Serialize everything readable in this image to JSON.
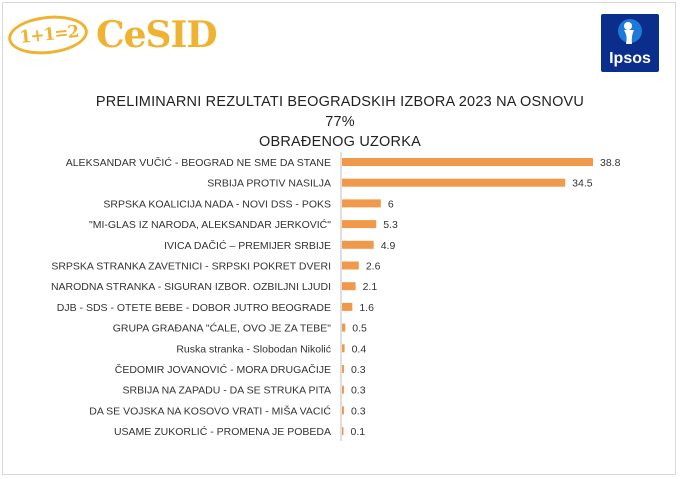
{
  "logos": {
    "left_badge": "1+1=2",
    "left_brand": "CeSID",
    "right_brand": "Ipsos"
  },
  "colors": {
    "bar": "#f0994a",
    "brand_orange": "#f0b331",
    "ipsos_blue": "#0b2d8c"
  },
  "chart_data": {
    "type": "bar",
    "orientation": "horizontal",
    "title_line1": "PRELIMINARNI REZULTATI BEOGRADSKIH IZBORA 2023 NA OSNOVU 77%",
    "title_line2": "OBRAĐENOG UZORKA",
    "categories": [
      "ALEKSANDAR VUČIĆ - BEOGRAD NE SME DA STANE",
      "SRBIJA PROTIV NASILJA",
      "SRPSKA KOALICIJA NADA - NOVI DSS - POKS",
      "\"MI-GLAS IZ NARODA, ALEKSANDAR JERKOVIĆ\"",
      "IVICA DAČIĆ – PREMIJER SRBIJE",
      "SRPSKA STRANKA ZAVETNICI - SRPSKI POKRET DVERI",
      "NARODNA STRANKA - SIGURAN IZBOR. OZBILJNI LJUDI",
      "DJB - SDS - OTETE BEBE - DOBOR JUTRO BEOGRADE",
      "GRUPA GRAĐANA \"ĆALE, OVO JE ZA TEBE\"",
      "Ruska stranka - Slobodan Nikolić",
      "ČEDOMIR JOVANOVIĆ - MORA DRUGAČIJE",
      "SRBIJA NA ZAPADU - DA SE STRUKA PITA",
      "DA SE VOJSKA NA KOSOVO VRATI - MIŠA VACIĆ",
      "USAME ZUKORLIĆ - PROMENA JE POBEDA"
    ],
    "values": [
      38.8,
      34.5,
      6,
      5.3,
      4.9,
      2.6,
      2.1,
      1.6,
      0.5,
      0.4,
      0.3,
      0.3,
      0.3,
      0.1
    ],
    "value_labels": [
      "38.8",
      "34.5",
      "6",
      "5.3",
      "4.9",
      "2.6",
      "2.1",
      "1.6",
      "0.5",
      "0.4",
      "0.3",
      "0.3",
      "0.3",
      "0.1"
    ],
    "xlim": [
      0,
      40
    ],
    "grid": false,
    "legend": "none"
  }
}
